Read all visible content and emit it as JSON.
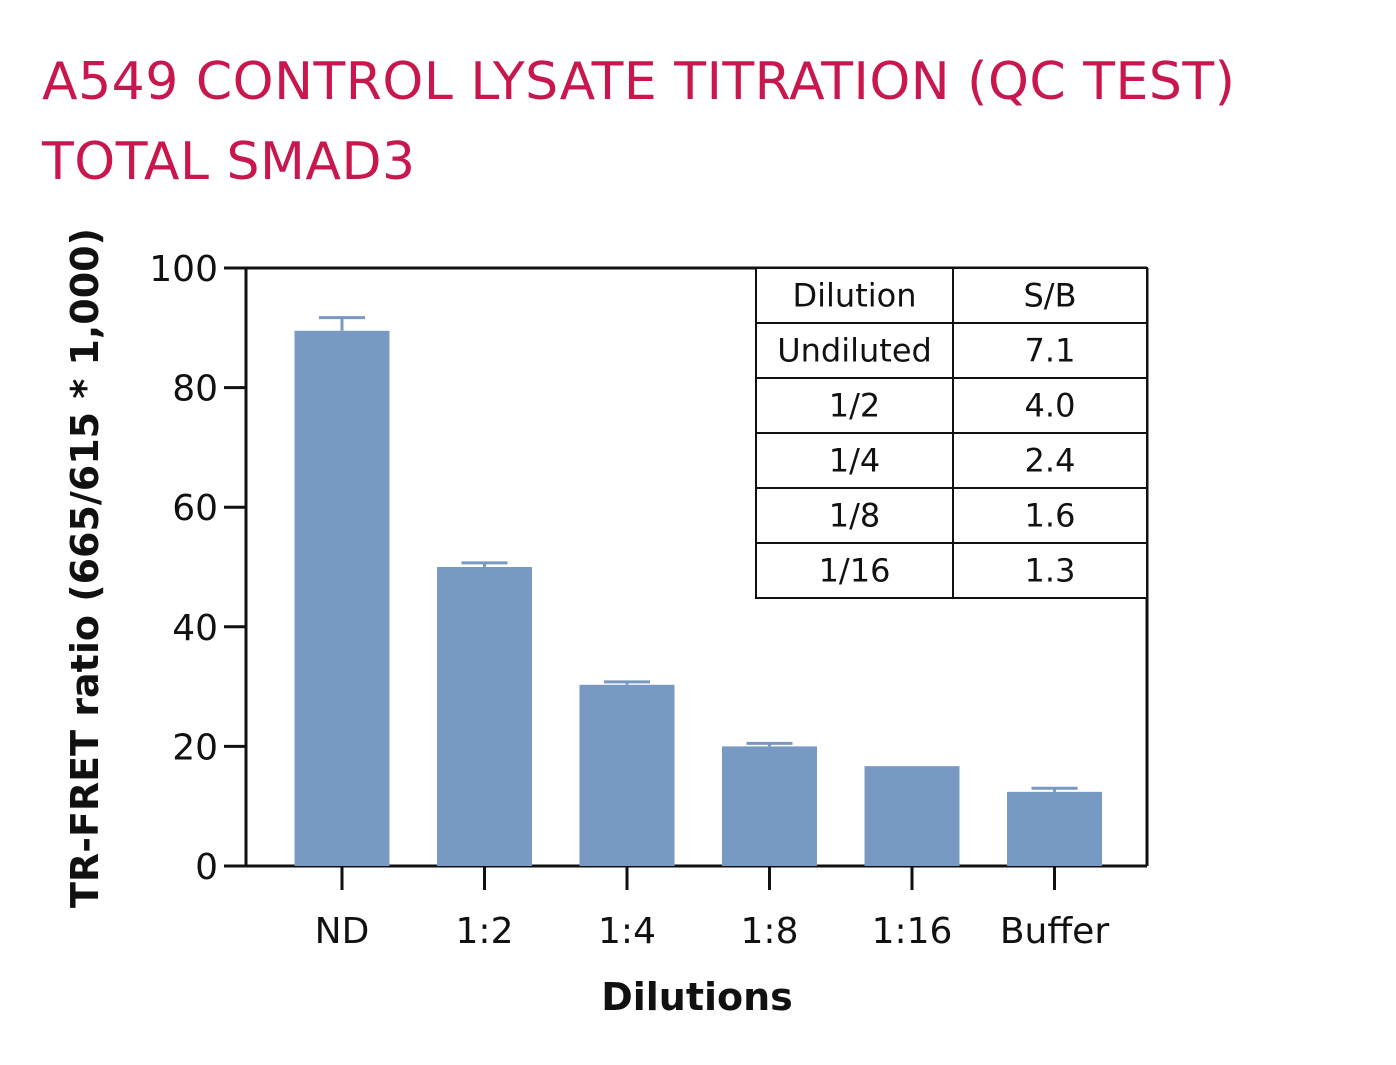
{
  "title": {
    "line1": "A549 CONTROL LYSATE TITRATION (QC TEST)",
    "line2": "TOTAL SMAD3"
  },
  "colors": {
    "title": "#c8174d",
    "bar": "#7899c2",
    "axis": "#111111"
  },
  "chart_data": {
    "type": "bar",
    "title": "A549 CONTROL LYSATE TITRATION (QC TEST) TOTAL SMAD3",
    "xlabel": "Dilutions",
    "ylabel": "TR-FRET ratio (665/615 * 1,000)",
    "categories": [
      "ND",
      "1:2",
      "1:4",
      "1:8",
      "1:16",
      "Buffer"
    ],
    "values": [
      89.5,
      50,
      30.3,
      20,
      16.7,
      12.4
    ],
    "errors": [
      2.2,
      0.7,
      0.5,
      0.5,
      0,
      0.6
    ],
    "ylim": [
      0,
      100
    ],
    "yticks": [
      "0",
      "20",
      "40",
      "60",
      "80",
      "100"
    ],
    "legend": "none",
    "inset_table": {
      "headers": [
        "Dilution",
        "S/B"
      ],
      "rows": [
        [
          "Undiluted",
          "7.1"
        ],
        [
          "1/2",
          "4.0"
        ],
        [
          "1/4",
          "2.4"
        ],
        [
          "1/8",
          "1.6"
        ],
        [
          "1/16",
          "1.3"
        ]
      ]
    }
  }
}
